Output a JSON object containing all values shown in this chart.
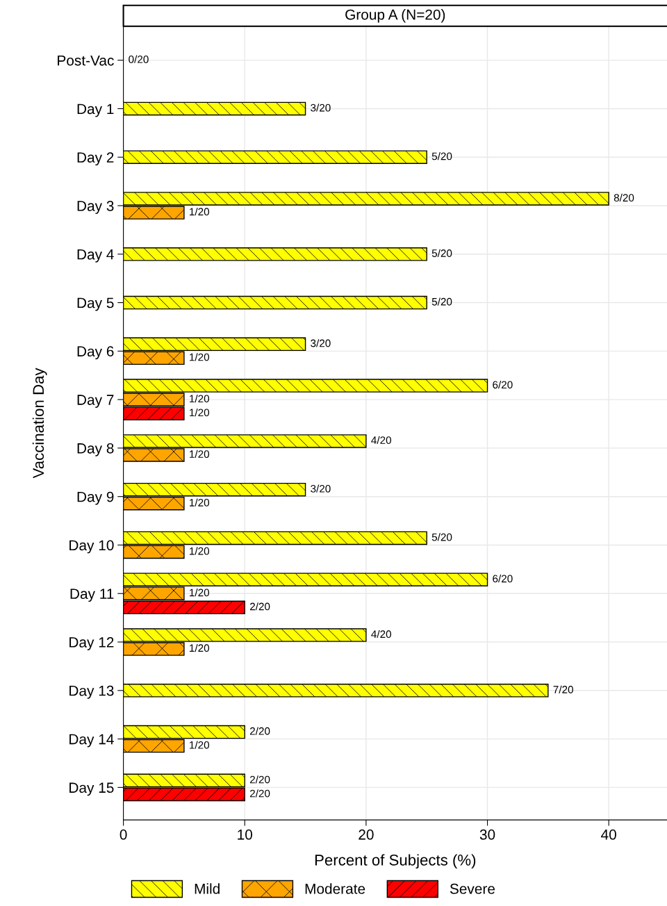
{
  "chart_data": {
    "type": "bar",
    "orientation": "horizontal",
    "title": "Group A (N=20)",
    "xlabel": "Percent of Subjects (%)",
    "ylabel": "Vaccination Day",
    "categories": [
      "Post-Vac",
      "Day 1",
      "Day 2",
      "Day 3",
      "Day 4",
      "Day 5",
      "Day 6",
      "Day 7",
      "Day 8",
      "Day 9",
      "Day 10",
      "Day 11",
      "Day 12",
      "Day 13",
      "Day 14",
      "Day 15"
    ],
    "series": [
      {
        "name": "Mild",
        "color": "#ffff00",
        "values": [
          0,
          15,
          25,
          40,
          25,
          25,
          15,
          30,
          20,
          15,
          25,
          30,
          20,
          35,
          10,
          10
        ],
        "value_labels": [
          "0/20",
          "3/20",
          "5/20",
          "8/20",
          "5/20",
          "5/20",
          "3/20",
          "6/20",
          "4/20",
          "3/20",
          "5/20",
          "6/20",
          "4/20",
          "7/20",
          "2/20",
          "2/20"
        ]
      },
      {
        "name": "Moderate",
        "color": "#ffa500",
        "values": [
          null,
          null,
          null,
          5,
          null,
          null,
          5,
          5,
          5,
          5,
          5,
          5,
          5,
          null,
          5,
          null
        ],
        "value_labels": [
          null,
          null,
          null,
          "1/20",
          null,
          null,
          "1/20",
          "1/20",
          "1/20",
          "1/20",
          "1/20",
          "1/20",
          "1/20",
          null,
          "1/20",
          null
        ]
      },
      {
        "name": "Severe",
        "color": "#ff0000",
        "values": [
          null,
          null,
          null,
          null,
          null,
          null,
          null,
          5,
          null,
          null,
          null,
          10,
          null,
          null,
          null,
          10
        ],
        "value_labels": [
          null,
          null,
          null,
          null,
          null,
          null,
          null,
          "1/20",
          null,
          null,
          null,
          "2/20",
          null,
          null,
          null,
          "2/20"
        ]
      }
    ],
    "xlim": [
      0,
      44.8
    ],
    "xticks": [
      0,
      10,
      20,
      30,
      40
    ],
    "grid": true,
    "legend": "bottom"
  }
}
